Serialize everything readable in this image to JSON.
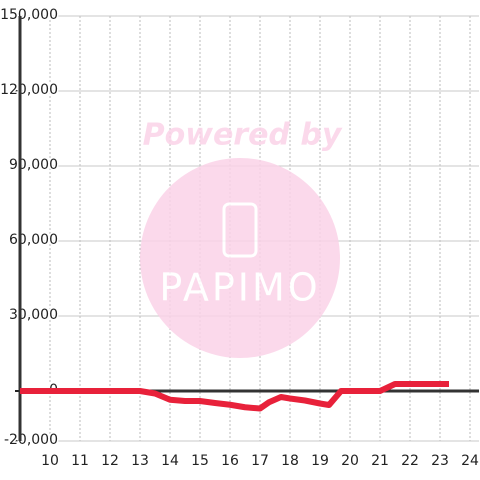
{
  "chart_data": {
    "type": "line",
    "annotations": [
      "Powered by",
      "PAPIMO"
    ],
    "x": [
      9,
      10,
      11,
      12,
      13,
      13.5,
      14,
      14.5,
      15,
      15.5,
      16,
      16.5,
      17,
      17.3,
      17.7,
      18,
      18.5,
      19,
      19.3,
      19.7,
      20,
      20.5,
      21,
      21.5,
      22,
      22.5,
      23,
      23.3
    ],
    "series": [
      {
        "color": "#e8213a",
        "values": [
          0,
          0,
          0,
          0,
          0,
          -1000,
          -3500,
          -4000,
          -4000,
          -4800,
          -5500,
          -6500,
          -7000,
          -4500,
          -2400,
          -3000,
          -3800,
          -5000,
          -5600,
          0,
          0,
          0,
          0,
          2800,
          2800,
          2800,
          2800,
          2800
        ]
      }
    ],
    "xlim": [
      9,
      24.3
    ],
    "xticks": [
      10,
      11,
      12,
      13,
      14,
      15,
      16,
      17,
      18,
      19,
      20,
      21,
      22,
      23,
      24
    ],
    "ylim": [
      -20000,
      150000
    ],
    "yticks": [
      {
        "value": -20000,
        "label": "-20,000"
      },
      {
        "value": 0,
        "label": "0"
      },
      {
        "value": 30000,
        "label": "30,000"
      },
      {
        "value": 60000,
        "label": "60,000"
      },
      {
        "value": 90000,
        "label": "90,000"
      },
      {
        "value": 120000,
        "label": "120,000"
      },
      {
        "value": 150000,
        "label": "150,000"
      }
    ],
    "grid": true
  }
}
